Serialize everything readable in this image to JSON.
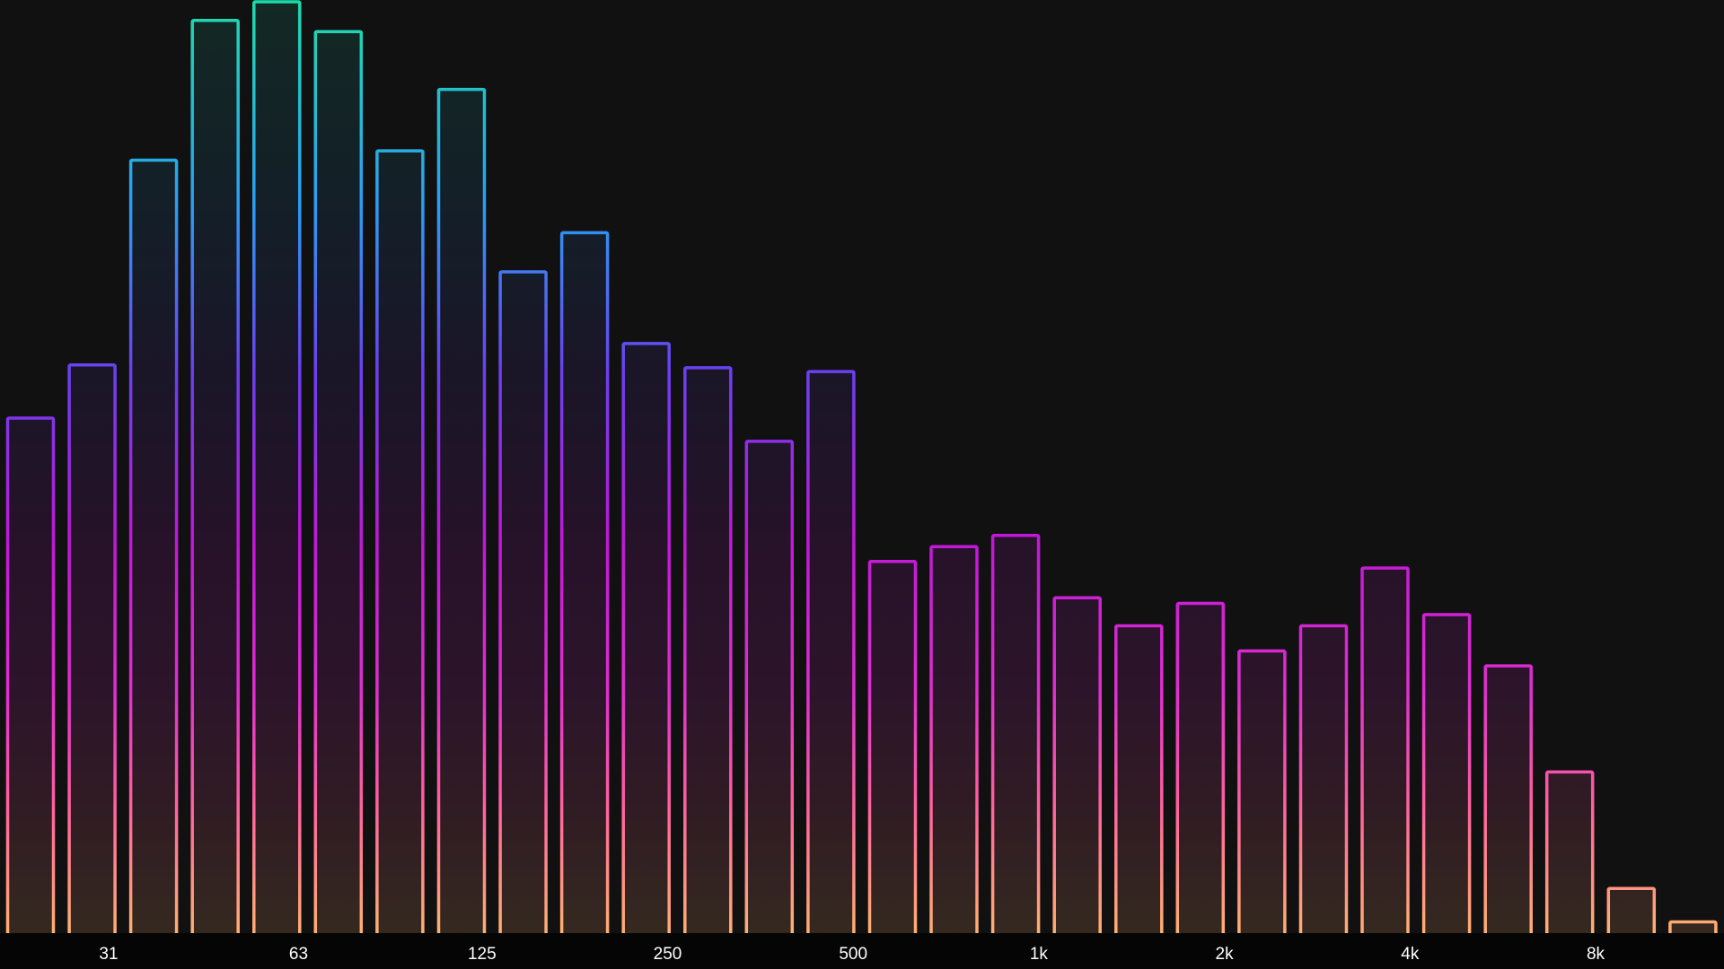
{
  "chart_data": {
    "type": "bar",
    "style": "spectrum analyzer, outlined bars with vertical gradient",
    "x_scale": "log (octave bands)",
    "ylim": [
      0,
      1
    ],
    "tick_labels": [
      "31",
      "63",
      "125",
      "250",
      "500",
      "1k",
      "2k",
      "4k",
      "8k"
    ],
    "values": [
      0.553,
      0.61,
      0.83,
      0.98,
      1.0,
      0.968,
      0.84,
      0.906,
      0.71,
      0.752,
      0.633,
      0.607,
      0.528,
      0.603,
      0.399,
      0.415,
      0.427,
      0.36,
      0.33,
      0.354,
      0.303,
      0.33,
      0.392,
      0.342,
      0.287,
      0.173,
      0.048,
      0.012
    ],
    "gradient_colors": [
      "#1edcaa",
      "#2a9df4",
      "#6b3ff0",
      "#c118d8",
      "#e02ed0",
      "#ff5fa0",
      "#ffb070"
    ],
    "background_color": "#111111",
    "axis_bar_color": "#050505",
    "label_color": "#ffffff"
  }
}
